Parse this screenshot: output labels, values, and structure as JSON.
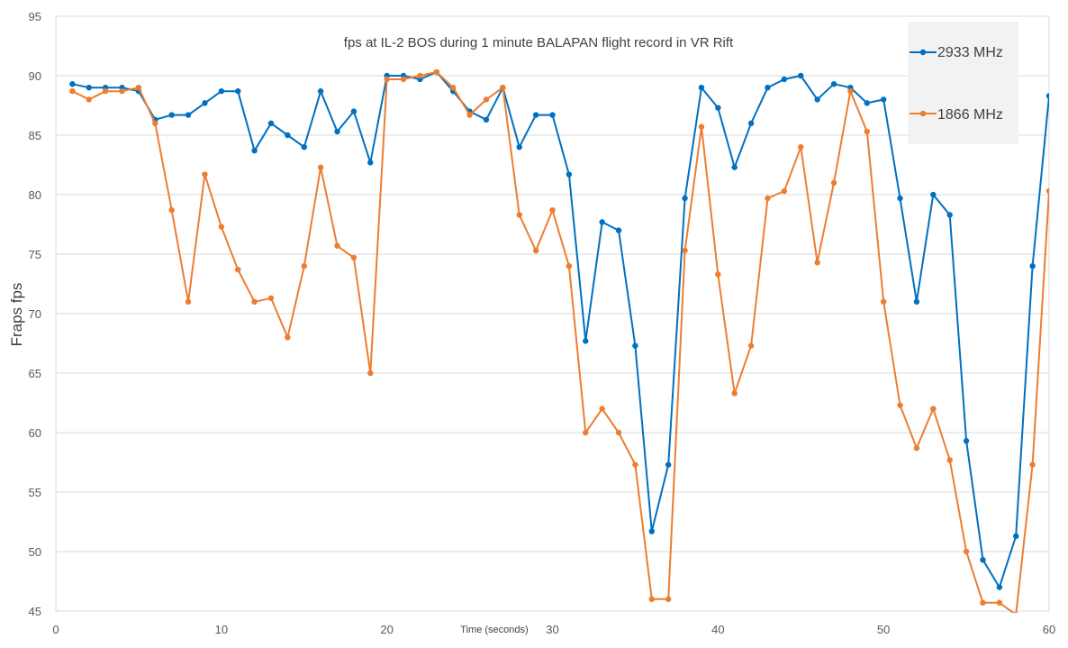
{
  "chart_data": {
    "type": "line",
    "title": "fps at IL-2 BOS during 1 minute BALAPAN flight record in VR Rift",
    "xlabel": "Time (seconds)",
    "ylabel": "Fraps fps",
    "xlim": [
      0,
      60
    ],
    "ylim": [
      45,
      95
    ],
    "x_ticks": [
      0,
      10,
      20,
      30,
      40,
      50,
      60
    ],
    "y_ticks": [
      45,
      50,
      55,
      60,
      65,
      70,
      75,
      80,
      85,
      90,
      95
    ],
    "grid": "horizontal",
    "legend_position": "top-right",
    "x": [
      1,
      2,
      3,
      4,
      5,
      6,
      7,
      8,
      9,
      10,
      11,
      12,
      13,
      14,
      15,
      16,
      17,
      18,
      19,
      20,
      21,
      22,
      23,
      24,
      25,
      26,
      27,
      28,
      29,
      30,
      31,
      32,
      33,
      34,
      35,
      36,
      37,
      38,
      39,
      40,
      41,
      42,
      43,
      44,
      45,
      46,
      47,
      48,
      49,
      50,
      51,
      52,
      53,
      54,
      55,
      56,
      57,
      58,
      59,
      60
    ],
    "series": [
      {
        "name": "2933 MHz",
        "color": "#0070C0",
        "values": [
          89.3,
          89.0,
          89.0,
          89.0,
          88.7,
          86.3,
          86.7,
          86.7,
          87.7,
          88.7,
          88.7,
          83.7,
          86.0,
          85.0,
          84.0,
          88.7,
          85.3,
          87.0,
          82.7,
          90.0,
          90.0,
          89.7,
          90.3,
          88.7,
          87.0,
          86.3,
          89.0,
          84.0,
          86.7,
          86.7,
          81.7,
          67.7,
          77.7,
          77.0,
          67.3,
          51.7,
          57.3,
          79.7,
          89.0,
          87.3,
          82.3,
          86.0,
          89.0,
          89.7,
          90.0,
          88.0,
          89.3,
          89.0,
          87.7,
          88.0,
          79.7,
          71.0,
          80.0,
          78.3,
          59.3,
          49.3,
          47.0,
          51.3,
          74.0,
          88.3
        ]
      },
      {
        "name": "1866 MHz",
        "color": "#ED7D31",
        "values": [
          88.7,
          88.0,
          88.7,
          88.7,
          89.0,
          86.0,
          78.7,
          71.0,
          81.7,
          77.3,
          73.7,
          71.0,
          71.3,
          68.0,
          74.0,
          82.3,
          75.7,
          74.7,
          65.0,
          89.7,
          89.7,
          90.0,
          90.3,
          89.0,
          86.7,
          88.0,
          89.0,
          78.3,
          75.3,
          78.7,
          74.0,
          60.0,
          62.0,
          60.0,
          57.3,
          46.0,
          46.0,
          75.3,
          85.7,
          73.3,
          63.3,
          67.3,
          79.7,
          80.3,
          84.0,
          74.3,
          81.0,
          88.7,
          85.3,
          71.0,
          62.3,
          58.7,
          62.0,
          57.7,
          50.0,
          45.7,
          45.7,
          44.7,
          57.3,
          80.3
        ]
      }
    ]
  }
}
